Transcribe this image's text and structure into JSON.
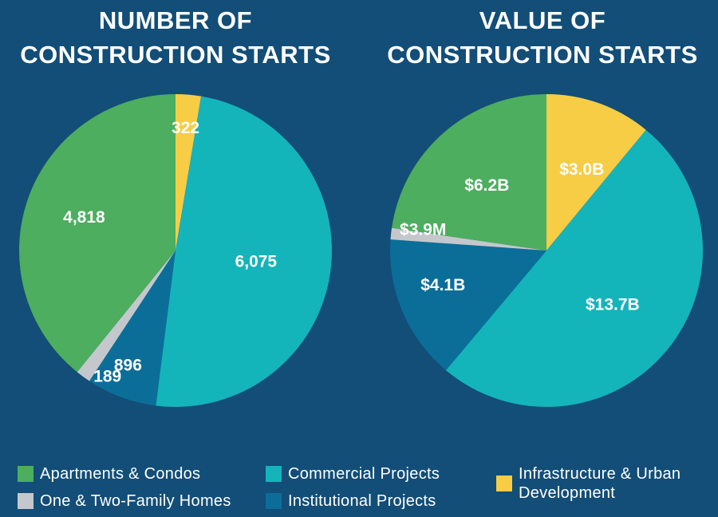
{
  "titles": {
    "left": [
      "NUMBER OF",
      "CONSTRUCTION STARTS"
    ],
    "right": [
      "VALUE OF",
      "CONSTRUCTION STARTS"
    ]
  },
  "colors": {
    "apartments": "#4cae5e",
    "commercial": "#14b4bb",
    "institutional": "#0b6e99",
    "one_two_family": "#c4c8cc",
    "infrastructure": "#f6cd45",
    "background": "#124e77"
  },
  "legend": [
    {
      "label": "Apartments & Condos",
      "color": "#4cae5e"
    },
    {
      "label": "Commercial Projects",
      "color": "#14b4bb"
    },
    {
      "label": "Infrastructure & Urban Development",
      "color": "#f6cd45"
    },
    {
      "label": "One & Two-Family Homes",
      "color": "#c4c8cc"
    },
    {
      "label": "Institutional Projects",
      "color": "#0b6e99"
    }
  ],
  "chart_data": [
    {
      "type": "pie",
      "title": "NUMBER OF CONSTRUCTION STARTS",
      "slices": [
        {
          "category": "Infrastructure & Urban Development",
          "value": 322,
          "label": "322",
          "color": "#f6cd45"
        },
        {
          "category": "Commercial Projects",
          "value": 6075,
          "label": "6,075",
          "color": "#14b4bb"
        },
        {
          "category": "Institutional Projects",
          "value": 896,
          "label": "896",
          "color": "#0b6e99"
        },
        {
          "category": "One & Two-Family Homes",
          "value": 189,
          "label": "189",
          "color": "#c4c8cc"
        },
        {
          "category": "Apartments & Condos",
          "value": 4818,
          "label": "4,818",
          "color": "#4cae5e"
        }
      ]
    },
    {
      "type": "pie",
      "title": "VALUE OF CONSTRUCTION STARTS",
      "slices": [
        {
          "category": "Infrastructure & Urban Development",
          "value": 3.0,
          "label": "$3.0B",
          "color": "#f6cd45"
        },
        {
          "category": "Commercial Projects",
          "value": 13.7,
          "label": "$13.7B",
          "color": "#14b4bb"
        },
        {
          "category": "Institutional Projects",
          "value": 4.1,
          "label": "$4.1B",
          "color": "#0b6e99"
        },
        {
          "category": "One & Two-Family Homes",
          "value": 0.0039,
          "label": "$3.9M",
          "color": "#c4c8cc"
        },
        {
          "category": "Apartments & Condos",
          "value": 6.2,
          "label": "$6.2B",
          "color": "#4cae5e"
        }
      ]
    }
  ]
}
